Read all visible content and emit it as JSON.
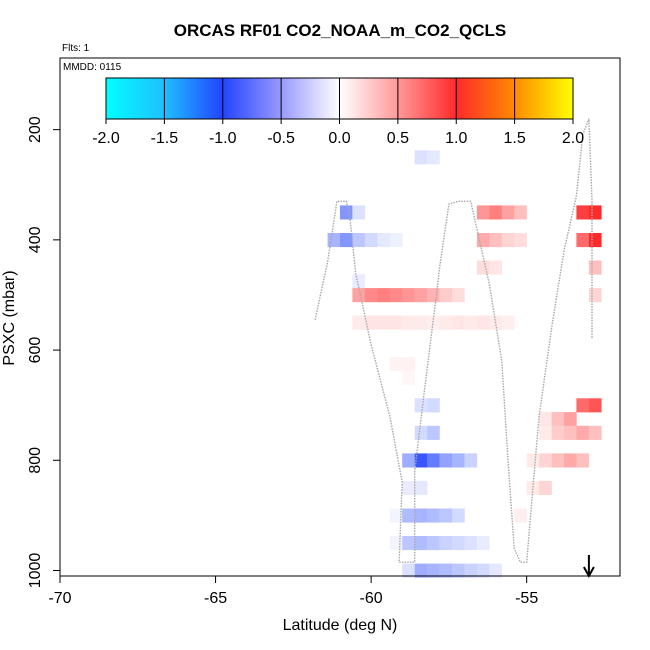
{
  "chart_data": {
    "type": "heatmap",
    "title": "ORCAS RF01 CO2_NOAA_m_CO2_QCLS",
    "flights_label": "Flts: 1",
    "date_label": "MMDD: 0115",
    "xlabel": "Latitude (deg N)",
    "ylabel": "PSXC (mbar)",
    "xlim": [
      -70,
      -52
    ],
    "ylim": [
      1010,
      70
    ],
    "x_ticks": [
      -70,
      -65,
      -60,
      -55
    ],
    "x_tick_labels": [
      "-70",
      "-65",
      "-60",
      "-55"
    ],
    "y_ticks": [
      200,
      400,
      600,
      800,
      1000
    ],
    "y_tick_labels": [
      "200",
      "400",
      "600",
      "800",
      "1000"
    ],
    "colorbar": {
      "range": [
        -2.0,
        2.0
      ],
      "ticks": [
        -2.0,
        -1.5,
        -1.0,
        -0.5,
        0.0,
        0.5,
        1.0,
        1.5,
        2.0
      ],
      "tick_labels": [
        "-2.0",
        "-1.5",
        "-1.0",
        "-0.5",
        "0.0",
        "0.5",
        "1.0",
        "1.5",
        "2.0"
      ]
    },
    "bin_size": {
      "lat": 0.4,
      "pressure": 25
    },
    "cells": [
      {
        "lat": -58.6,
        "p": 250,
        "v": -0.08
      },
      {
        "lat": -58.2,
        "p": 250,
        "v": -0.06
      },
      {
        "lat": -61.0,
        "p": 350,
        "v": -0.28
      },
      {
        "lat": -60.6,
        "p": 350,
        "v": -0.08
      },
      {
        "lat": -56.6,
        "p": 350,
        "v": 0.25
      },
      {
        "lat": -56.2,
        "p": 350,
        "v": 0.3
      },
      {
        "lat": -55.8,
        "p": 350,
        "v": 0.22
      },
      {
        "lat": -55.4,
        "p": 350,
        "v": 0.15
      },
      {
        "lat": -53.4,
        "p": 350,
        "v": 0.45
      },
      {
        "lat": -53.0,
        "p": 350,
        "v": 0.5
      },
      {
        "lat": -61.4,
        "p": 400,
        "v": -0.2
      },
      {
        "lat": -61.0,
        "p": 400,
        "v": -0.28
      },
      {
        "lat": -60.6,
        "p": 400,
        "v": -0.15
      },
      {
        "lat": -60.2,
        "p": 400,
        "v": -0.1
      },
      {
        "lat": -59.8,
        "p": 400,
        "v": -0.06
      },
      {
        "lat": -59.4,
        "p": 400,
        "v": -0.04
      },
      {
        "lat": -56.6,
        "p": 400,
        "v": 0.2
      },
      {
        "lat": -56.2,
        "p": 400,
        "v": 0.15
      },
      {
        "lat": -55.8,
        "p": 400,
        "v": 0.1
      },
      {
        "lat": -55.4,
        "p": 400,
        "v": 0.08
      },
      {
        "lat": -53.4,
        "p": 400,
        "v": 0.35
      },
      {
        "lat": -53.0,
        "p": 400,
        "v": 0.5
      },
      {
        "lat": -56.6,
        "p": 450,
        "v": 0.08
      },
      {
        "lat": -56.2,
        "p": 450,
        "v": 0.06
      },
      {
        "lat": -53.0,
        "p": 450,
        "v": 0.15
      },
      {
        "lat": -60.6,
        "p": 475,
        "v": -0.05
      },
      {
        "lat": -60.6,
        "p": 500,
        "v": 0.22
      },
      {
        "lat": -60.2,
        "p": 500,
        "v": 0.28
      },
      {
        "lat": -59.8,
        "p": 500,
        "v": 0.3
      },
      {
        "lat": -59.4,
        "p": 500,
        "v": 0.28
      },
      {
        "lat": -59.0,
        "p": 500,
        "v": 0.25
      },
      {
        "lat": -58.6,
        "p": 500,
        "v": 0.22
      },
      {
        "lat": -58.2,
        "p": 500,
        "v": 0.18
      },
      {
        "lat": -57.8,
        "p": 500,
        "v": 0.12
      },
      {
        "lat": -57.4,
        "p": 500,
        "v": 0.08
      },
      {
        "lat": -53.0,
        "p": 500,
        "v": 0.1
      },
      {
        "lat": -60.6,
        "p": 550,
        "v": 0.05
      },
      {
        "lat": -60.2,
        "p": 550,
        "v": 0.06
      },
      {
        "lat": -59.8,
        "p": 550,
        "v": 0.06
      },
      {
        "lat": -59.4,
        "p": 550,
        "v": 0.06
      },
      {
        "lat": -59.0,
        "p": 550,
        "v": 0.05
      },
      {
        "lat": -58.6,
        "p": 550,
        "v": 0.05
      },
      {
        "lat": -58.2,
        "p": 550,
        "v": 0.04
      },
      {
        "lat": -57.8,
        "p": 550,
        "v": 0.05
      },
      {
        "lat": -57.4,
        "p": 550,
        "v": 0.06
      },
      {
        "lat": -57.0,
        "p": 550,
        "v": 0.05
      },
      {
        "lat": -56.6,
        "p": 550,
        "v": 0.06
      },
      {
        "lat": -56.2,
        "p": 550,
        "v": 0.05
      },
      {
        "lat": -55.8,
        "p": 550,
        "v": 0.04
      },
      {
        "lat": -59.4,
        "p": 625,
        "v": 0.03
      },
      {
        "lat": -59.0,
        "p": 625,
        "v": 0.03
      },
      {
        "lat": -59.0,
        "p": 650,
        "v": 0.02
      },
      {
        "lat": -58.6,
        "p": 700,
        "v": -0.08
      },
      {
        "lat": -58.2,
        "p": 700,
        "v": -0.1
      },
      {
        "lat": -53.4,
        "p": 700,
        "v": 0.35
      },
      {
        "lat": -53.0,
        "p": 700,
        "v": 0.4
      },
      {
        "lat": -54.6,
        "p": 725,
        "v": 0.06
      },
      {
        "lat": -54.2,
        "p": 725,
        "v": 0.15
      },
      {
        "lat": -53.8,
        "p": 725,
        "v": 0.22
      },
      {
        "lat": -58.6,
        "p": 750,
        "v": -0.1
      },
      {
        "lat": -58.2,
        "p": 750,
        "v": -0.15
      },
      {
        "lat": -54.6,
        "p": 750,
        "v": 0.05
      },
      {
        "lat": -54.2,
        "p": 750,
        "v": 0.12
      },
      {
        "lat": -53.8,
        "p": 750,
        "v": 0.15
      },
      {
        "lat": -53.4,
        "p": 750,
        "v": 0.2
      },
      {
        "lat": -53.0,
        "p": 750,
        "v": 0.15
      },
      {
        "lat": -59.0,
        "p": 800,
        "v": -0.22
      },
      {
        "lat": -58.6,
        "p": 800,
        "v": -0.45
      },
      {
        "lat": -58.2,
        "p": 800,
        "v": -0.35
      },
      {
        "lat": -57.8,
        "p": 800,
        "v": -0.25
      },
      {
        "lat": -57.4,
        "p": 800,
        "v": -0.2
      },
      {
        "lat": -57.0,
        "p": 800,
        "v": -0.12
      },
      {
        "lat": -55.0,
        "p": 800,
        "v": 0.05
      },
      {
        "lat": -54.6,
        "p": 800,
        "v": 0.1
      },
      {
        "lat": -54.2,
        "p": 800,
        "v": 0.15
      },
      {
        "lat": -53.8,
        "p": 800,
        "v": 0.2
      },
      {
        "lat": -53.4,
        "p": 800,
        "v": 0.15
      },
      {
        "lat": -59.0,
        "p": 850,
        "v": -0.05
      },
      {
        "lat": -58.6,
        "p": 850,
        "v": -0.06
      },
      {
        "lat": -55.0,
        "p": 850,
        "v": 0.05
      },
      {
        "lat": -54.6,
        "p": 850,
        "v": 0.1
      },
      {
        "lat": -59.4,
        "p": 900,
        "v": -0.03
      },
      {
        "lat": -59.0,
        "p": 900,
        "v": -0.18
      },
      {
        "lat": -58.6,
        "p": 900,
        "v": -0.2
      },
      {
        "lat": -58.2,
        "p": 900,
        "v": -0.18
      },
      {
        "lat": -57.8,
        "p": 900,
        "v": -0.15
      },
      {
        "lat": -57.4,
        "p": 900,
        "v": -0.1
      },
      {
        "lat": -55.4,
        "p": 900,
        "v": 0.04
      },
      {
        "lat": -59.4,
        "p": 950,
        "v": -0.03
      },
      {
        "lat": -59.0,
        "p": 950,
        "v": -0.15
      },
      {
        "lat": -58.6,
        "p": 950,
        "v": -0.18
      },
      {
        "lat": -58.2,
        "p": 950,
        "v": -0.15
      },
      {
        "lat": -57.8,
        "p": 950,
        "v": -0.12
      },
      {
        "lat": -57.4,
        "p": 950,
        "v": -0.1
      },
      {
        "lat": -57.0,
        "p": 950,
        "v": -0.08
      },
      {
        "lat": -56.6,
        "p": 950,
        "v": -0.05
      },
      {
        "lat": -59.0,
        "p": 1000,
        "v": -0.08
      },
      {
        "lat": -58.6,
        "p": 1000,
        "v": -0.22
      },
      {
        "lat": -58.2,
        "p": 1000,
        "v": -0.2
      },
      {
        "lat": -57.8,
        "p": 1000,
        "v": -0.18
      },
      {
        "lat": -57.4,
        "p": 1000,
        "v": -0.15
      },
      {
        "lat": -57.0,
        "p": 1000,
        "v": -0.12
      },
      {
        "lat": -56.6,
        "p": 1000,
        "v": -0.1
      },
      {
        "lat": -56.2,
        "p": 1000,
        "v": -0.06
      }
    ],
    "flight_track": [
      [
        -61.8,
        545
      ],
      [
        -61.4,
        440
      ],
      [
        -61.1,
        330
      ],
      [
        -60.8,
        330
      ],
      [
        -60.7,
        350
      ],
      [
        -60.5,
        460
      ],
      [
        -60.0,
        590
      ],
      [
        -59.4,
        720
      ],
      [
        -59.0,
        840
      ],
      [
        -59.1,
        985
      ],
      [
        -58.6,
        985
      ],
      [
        -58.6,
        820
      ],
      [
        -58.3,
        680
      ],
      [
        -57.9,
        500
      ],
      [
        -57.8,
        450
      ],
      [
        -57.5,
        335
      ],
      [
        -57.2,
        330
      ],
      [
        -56.8,
        330
      ],
      [
        -56.6,
        380
      ],
      [
        -56.2,
        480
      ],
      [
        -55.8,
        620
      ],
      [
        -55.6,
        800
      ],
      [
        -55.4,
        960
      ],
      [
        -55.2,
        985
      ],
      [
        -55.0,
        985
      ],
      [
        -54.8,
        850
      ],
      [
        -54.6,
        720
      ],
      [
        -54.2,
        560
      ],
      [
        -53.8,
        420
      ],
      [
        -53.4,
        320
      ],
      [
        -53.2,
        210
      ],
      [
        -53.0,
        180
      ],
      [
        -52.9,
        330
      ],
      [
        -52.9,
        580
      ]
    ],
    "arrow_marker": {
      "lat": -53.0,
      "direction": "down"
    }
  }
}
